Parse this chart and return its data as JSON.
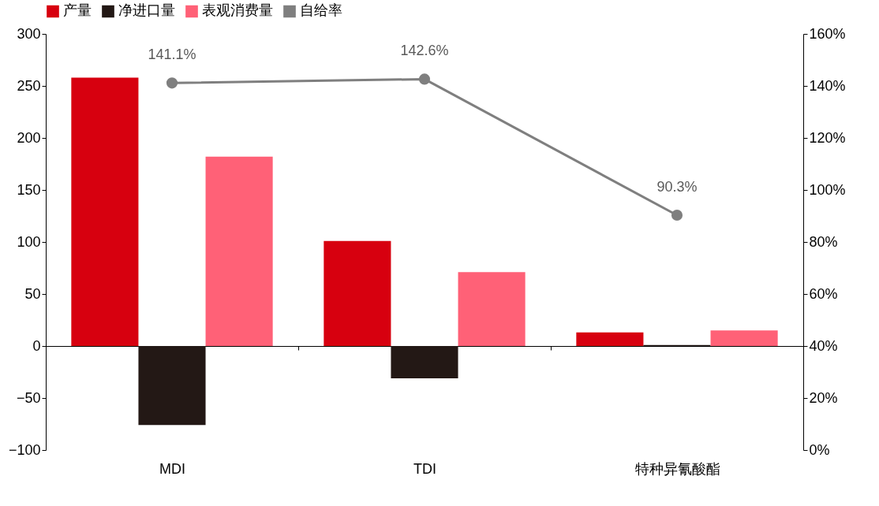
{
  "chart_data": {
    "type": "bar",
    "categories": [
      "MDI",
      "TDI",
      "特种异氰酸酯"
    ],
    "series": [
      {
        "name": "产量",
        "color": "#d7000f",
        "values": [
          258,
          101,
          13
        ]
      },
      {
        "name": "净进口量",
        "color": "#231815",
        "values": [
          -76,
          -31,
          1
        ]
      },
      {
        "name": "表观消费量",
        "color": "#ff6177",
        "values": [
          182,
          71,
          15
        ]
      },
      {
        "name": "自给率",
        "type": "line",
        "axis": "y2",
        "color": "#7f7f7f",
        "marker": "circle",
        "values": [
          141.1,
          142.6,
          90.3
        ],
        "value_labels": [
          "141.1%",
          "142.6%",
          "90.3%"
        ]
      }
    ],
    "ylim": [
      -100,
      300
    ],
    "yticks": [
      -100,
      -50,
      0,
      50,
      100,
      150,
      200,
      250,
      300
    ],
    "y2lim": [
      0,
      160
    ],
    "y2ticks": [
      {
        "value": 0,
        "label": "0%"
      },
      {
        "value": 20,
        "label": "20%"
      },
      {
        "value": 40,
        "label": "40%"
      },
      {
        "value": 60,
        "label": "60%"
      },
      {
        "value": 80,
        "label": "80%"
      },
      {
        "value": 100,
        "label": "100%"
      },
      {
        "value": 120,
        "label": "120%"
      },
      {
        "value": 140,
        "label": "140%"
      },
      {
        "value": 160,
        "label": "160%"
      }
    ],
    "legend": "top"
  }
}
